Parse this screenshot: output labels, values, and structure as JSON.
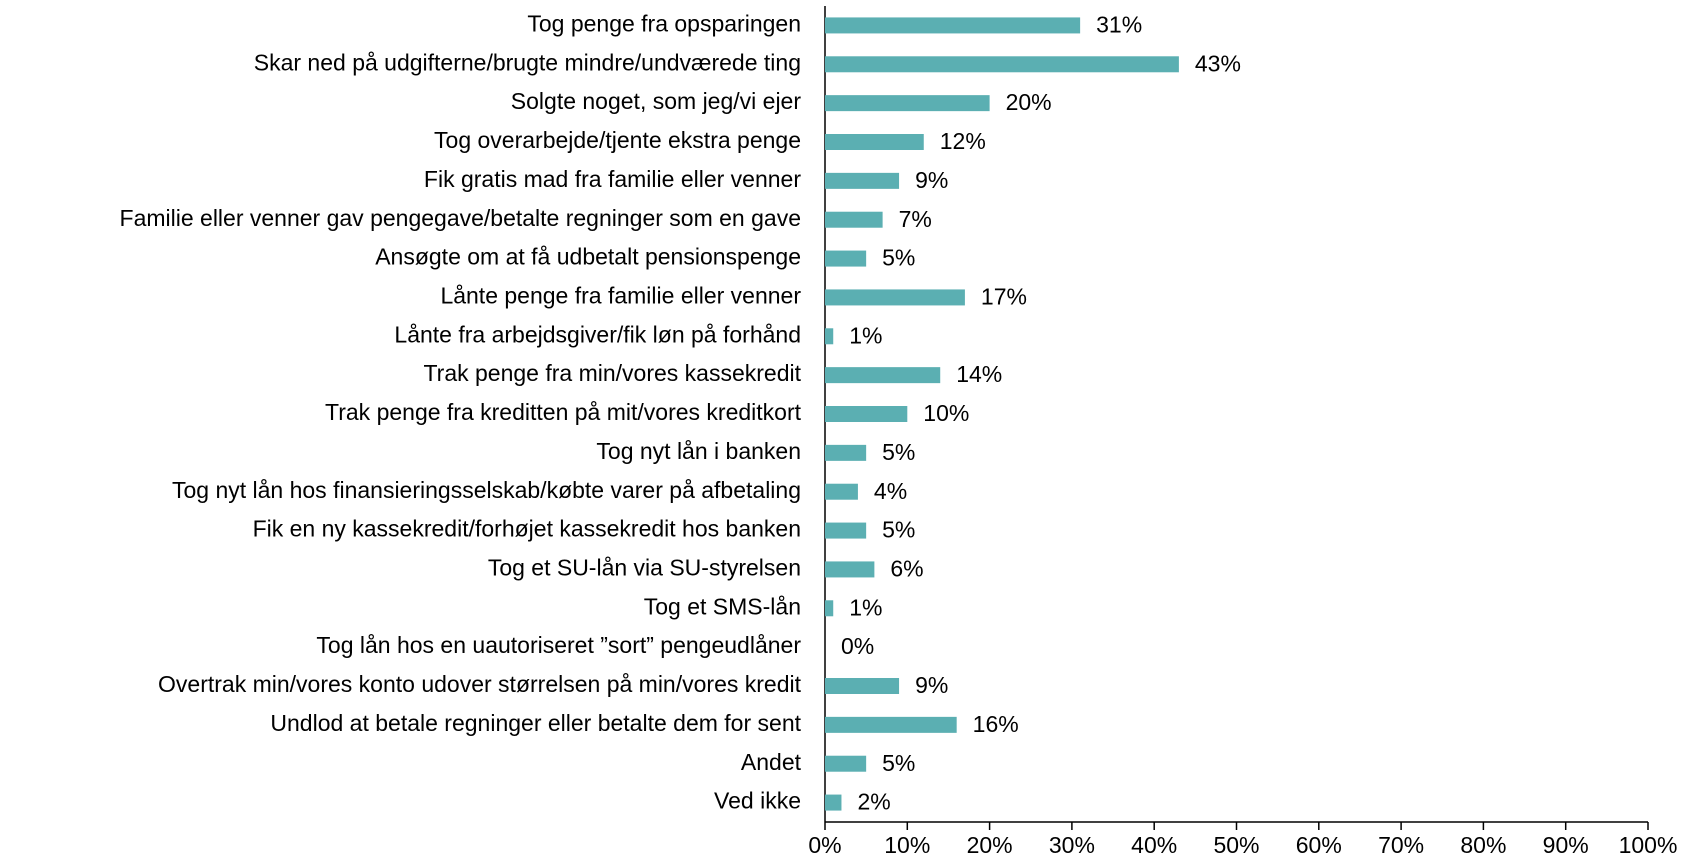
{
  "chart_data": {
    "type": "barh",
    "categories": [
      "Tog penge fra opsparingen",
      "Skar ned på udgifterne/brugte mindre/undværede ting",
      "Solgte noget, som jeg/vi ejer",
      "Tog overarbejde/tjente ekstra penge",
      "Fik gratis mad fra familie eller venner",
      "Familie eller venner gav pengegave/betalte regninger som en gave",
      "Ansøgte om at få udbetalt pensionspenge",
      "Lånte penge fra familie eller venner",
      "Lånte fra arbejdsgiver/fik løn på forhånd",
      "Trak penge fra min/vores kassekredit",
      "Trak penge fra kreditten på mit/vores kreditkort",
      "Tog nyt lån i banken",
      "Tog nyt lån hos finansieringsselskab/købte varer på afbetaling",
      "Fik en ny kassekredit/forhøjet kassekredit hos banken",
      "Tog et SU-lån via SU-styrelsen",
      "Tog et SMS-lån",
      "Tog lån hos en uautoriseret ”sort” pengeudlåner",
      "Overtrak min/vores konto udover størrelsen på min/vores kredit",
      "Undlod at betale regninger eller betalte dem for sent",
      "Andet",
      "Ved ikke"
    ],
    "values": [
      31,
      43,
      20,
      12,
      9,
      7,
      5,
      17,
      1,
      14,
      10,
      5,
      4,
      5,
      6,
      1,
      0,
      9,
      16,
      5,
      2
    ],
    "value_labels": [
      "31%",
      "43%",
      "20%",
      "12%",
      "9%",
      "7%",
      "5%",
      "17%",
      "1%",
      "14%",
      "10%",
      "5%",
      "4%",
      "5%",
      "6%",
      "1%",
      "0%",
      "9%",
      "16%",
      "5%",
      "2%"
    ],
    "color": "#5bafb2",
    "xlim": [
      0,
      100
    ],
    "xticks": [
      {
        "value": 0,
        "label": "0%"
      },
      {
        "value": 10,
        "label": "10%"
      },
      {
        "value": 20,
        "label": "20%"
      },
      {
        "value": 30,
        "label": "30%"
      },
      {
        "value": 40,
        "label": "40%"
      },
      {
        "value": 50,
        "label": "50%"
      },
      {
        "value": 60,
        "label": "60%"
      },
      {
        "value": 70,
        "label": "70%"
      },
      {
        "value": 80,
        "label": "80%"
      },
      {
        "value": 90,
        "label": "90%"
      },
      {
        "value": 100,
        "label": "100%"
      }
    ]
  }
}
